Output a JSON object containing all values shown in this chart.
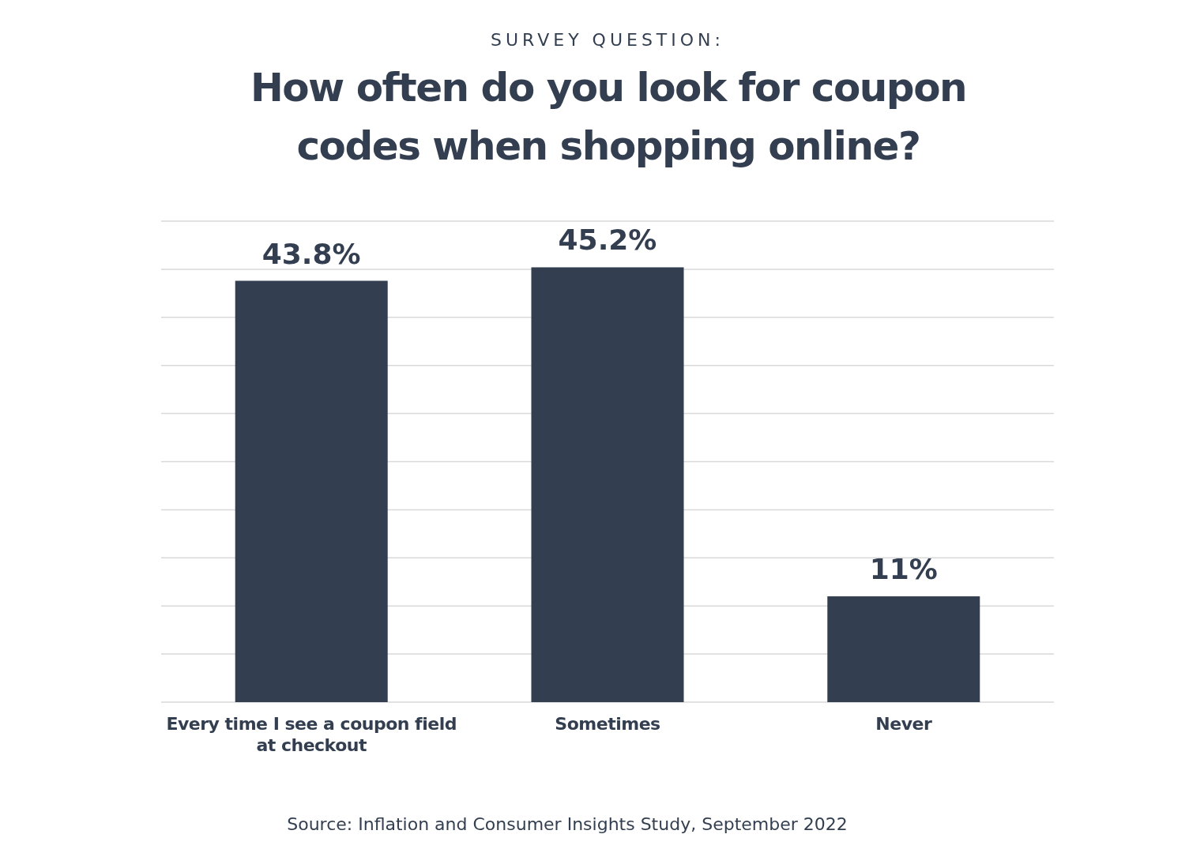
{
  "chart_data": {
    "type": "bar",
    "subtitle": "SURVEY QUESTION:",
    "title": "How often do you look for coupon codes when shopping online?",
    "categories": [
      "Every time I see a coupon field at checkout",
      "Sometimes",
      "Never"
    ],
    "values": [
      43.8,
      45.2,
      11
    ],
    "value_labels": [
      "43.8%",
      "45.2%",
      "11%"
    ],
    "color": "#333f50",
    "ylim": [
      0,
      50
    ],
    "yticks": [
      {
        "value": 0,
        "label": null
      },
      {
        "value": 5,
        "label": null
      },
      {
        "value": 10,
        "label": null
      },
      {
        "value": 15,
        "label": null
      },
      {
        "value": 20,
        "label": null
      },
      {
        "value": 25,
        "label": null
      },
      {
        "value": 30,
        "label": null
      },
      {
        "value": 35,
        "label": null
      },
      {
        "value": 40,
        "label": null
      },
      {
        "value": 45,
        "label": null
      },
      {
        "value": 50,
        "label": null
      }
    ],
    "grid": "y",
    "tick_labels": "x",
    "annotations": [
      "Source: Inflation and Consumer Insights Study, September 2022"
    ]
  }
}
